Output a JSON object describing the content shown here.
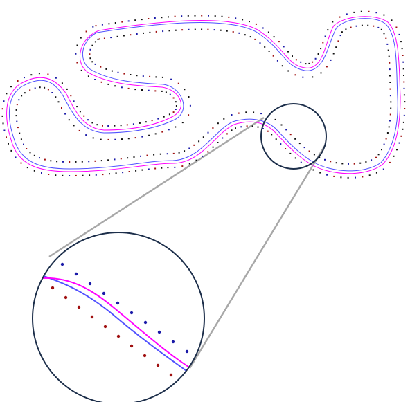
{
  "figure": {
    "description_visible_text": "",
    "colors": {
      "line_a": "#ff00ff",
      "line_b": "#5050ff",
      "cones_left": "#1a1aa8",
      "cones_right": "#a01010",
      "cones_other": "#111111",
      "circle": "#1c2e4a",
      "connector": "#a8a8a8",
      "background": "#ffffff"
    },
    "elements": [
      "track-overview",
      "racing-line-magenta",
      "racing-line-blue",
      "cone-dots-outer",
      "cone-dots-inner",
      "magnifier-source-circle",
      "magnifier-zoom-circle",
      "connector-lines"
    ]
  }
}
